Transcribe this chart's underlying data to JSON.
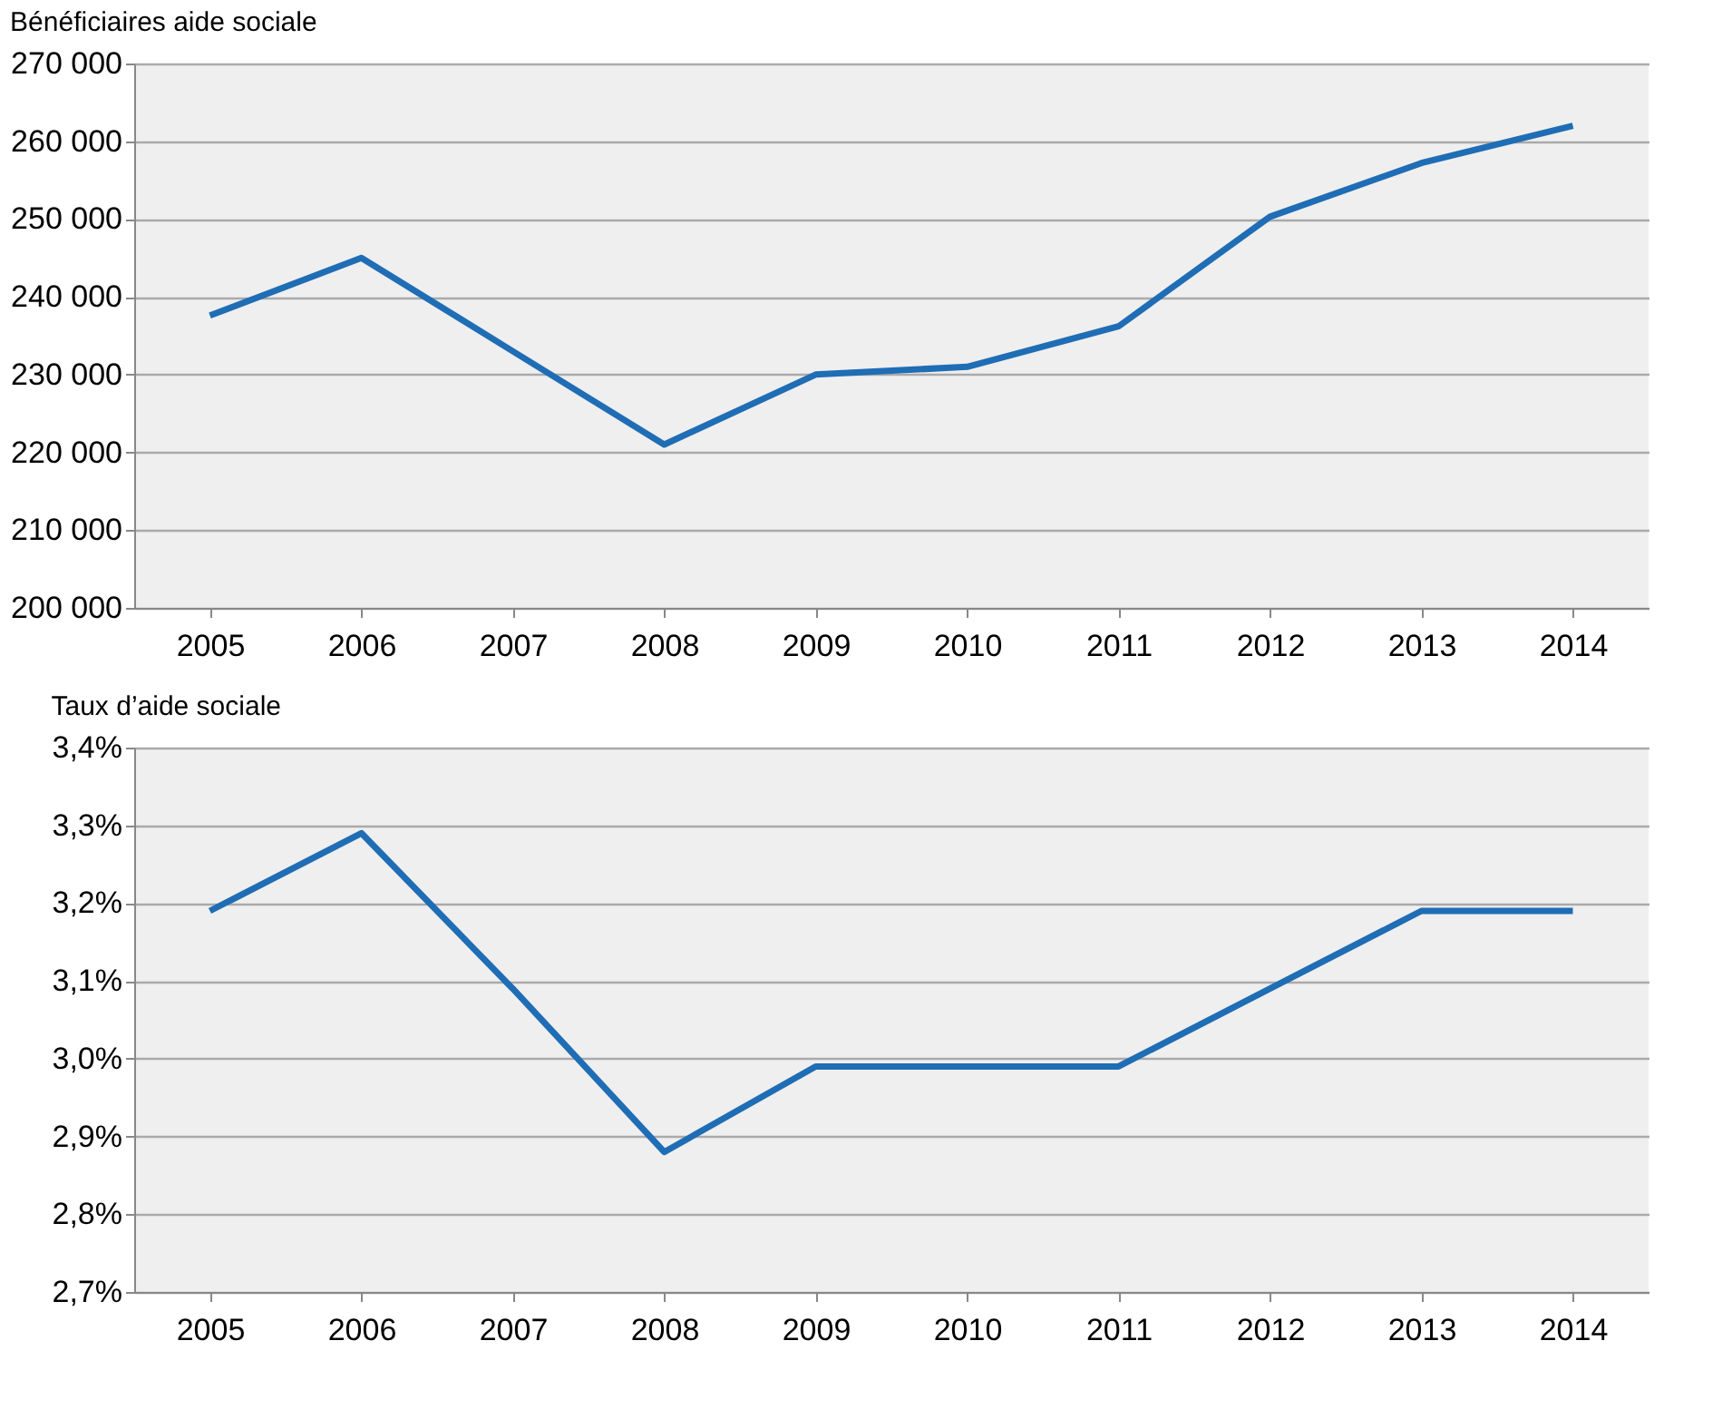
{
  "chart_data": [
    {
      "type": "line",
      "title": "Bénéficiaires aide sociale",
      "categories": [
        "2005",
        "2006",
        "2007",
        "2008",
        "2009",
        "2010",
        "2011",
        "2012",
        "2013",
        "2014"
      ],
      "series": [
        {
          "color": "#1f6db5",
          "values": [
            237600,
            245000,
            233000,
            221000,
            230000,
            231000,
            236200,
            250300,
            257200,
            262000
          ]
        }
      ],
      "ylim": [
        200000,
        270000
      ],
      "yticks": [
        {
          "value": 200000,
          "label": "200 000"
        },
        {
          "value": 210000,
          "label": "210 000"
        },
        {
          "value": 220000,
          "label": "220 000"
        },
        {
          "value": 230000,
          "label": "230 000"
        },
        {
          "value": 240000,
          "label": "240 000"
        },
        {
          "value": 250000,
          "label": "250 000"
        },
        {
          "value": 260000,
          "label": "260 000"
        },
        {
          "value": 270000,
          "label": "270 000"
        }
      ],
      "grid": "y",
      "marker": "none",
      "line_style": "solid"
    },
    {
      "type": "line",
      "title": "Taux d’aide sociale",
      "categories": [
        "2005",
        "2006",
        "2007",
        "2008",
        "2009",
        "2010",
        "2011",
        "2012",
        "2013",
        "2014"
      ],
      "series": [
        {
          "color": "#1f6db5",
          "values": [
            3.19,
            3.29,
            3.09,
            2.88,
            2.99,
            2.99,
            2.99,
            3.09,
            3.19,
            3.19
          ]
        }
      ],
      "ylim": [
        2.7,
        3.4
      ],
      "yticks": [
        {
          "value": 2.7,
          "label": "2,7%"
        },
        {
          "value": 2.8,
          "label": "2,8%"
        },
        {
          "value": 2.9,
          "label": "2,9%"
        },
        {
          "value": 3.0,
          "label": "3,0%"
        },
        {
          "value": 3.1,
          "label": "3,1%"
        },
        {
          "value": 3.2,
          "label": "3,2%"
        },
        {
          "value": 3.3,
          "label": "3,3%"
        },
        {
          "value": 3.4,
          "label": "3,4%"
        }
      ],
      "grid": "y",
      "marker": "none",
      "line_style": "solid"
    }
  ]
}
